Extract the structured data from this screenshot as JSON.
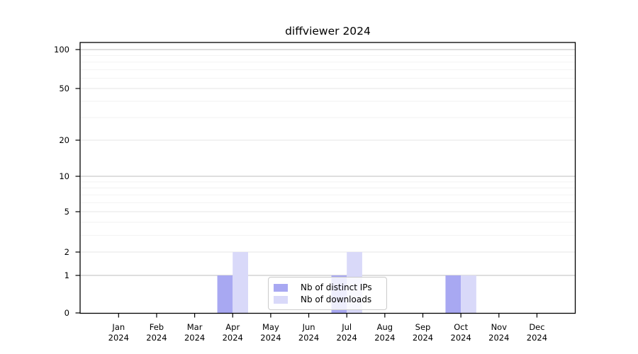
{
  "chart_data": {
    "type": "bar",
    "title": "diffviewer 2024",
    "categories": [
      "Jan",
      "Feb",
      "Mar",
      "Apr",
      "May",
      "Jun",
      "Jul",
      "Aug",
      "Sep",
      "Oct",
      "Nov",
      "Dec"
    ],
    "x_sub_label": "2024",
    "series": [
      {
        "name": "Nb of distinct IPs",
        "color": "#a8a8f2",
        "values": [
          0,
          0,
          0,
          1,
          0,
          0,
          1,
          0,
          0,
          1,
          0,
          0
        ]
      },
      {
        "name": "Nb of downloads",
        "color": "#d9d9f9",
        "values": [
          0,
          0,
          0,
          2,
          0,
          0,
          2,
          0,
          0,
          1,
          0,
          0
        ]
      }
    ],
    "y_scale": "log1p",
    "ylim": [
      0,
      113
    ],
    "y_major_ticks": [
      0,
      1,
      2,
      5,
      10,
      20,
      50,
      100
    ],
    "y_minor_gridlines": [
      3,
      4,
      6,
      7,
      8,
      9,
      30,
      40,
      60,
      70,
      80,
      90
    ],
    "y_decade_gridlines": [
      1,
      10,
      100
    ],
    "grid": true,
    "legend_position": "lower center",
    "bar_mode": "grouped-pair"
  }
}
